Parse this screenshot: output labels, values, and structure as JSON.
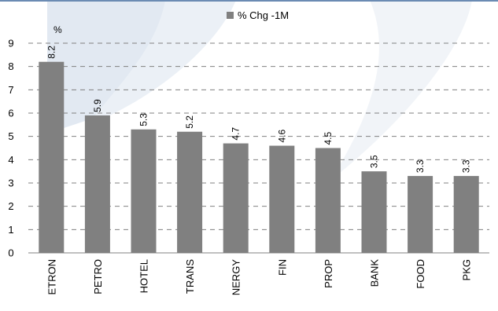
{
  "chart_data": {
    "type": "bar",
    "ylabel": "%",
    "ylim": [
      0,
      9
    ],
    "yticks": [
      0,
      1,
      2,
      3,
      4,
      5,
      6,
      7,
      8,
      9
    ],
    "grid": true,
    "legend_position": "top-center",
    "categories": [
      "ETRON",
      "PETRO",
      "HOTEL",
      "TRANS",
      "NERGY",
      "FIN",
      "PROP",
      "BANK",
      "FOOD",
      "PKG"
    ],
    "series": [
      {
        "name": "% Chg -1M",
        "values": [
          8.2,
          5.9,
          5.3,
          5.2,
          4.7,
          4.6,
          4.5,
          3.5,
          3.3,
          3.3
        ],
        "value_labels": [
          "8.2",
          "5.9",
          "5.3",
          "5.2",
          "4.7",
          "4.6",
          "4.5",
          "3.5",
          "3.3",
          "3.3"
        ]
      }
    ],
    "colors": {
      "bar": "#808080",
      "grid": "#808080",
      "watermark": "#3f6d9f",
      "watermark_faint": "#dde6f0",
      "top_border": "#6b8bb3"
    }
  }
}
